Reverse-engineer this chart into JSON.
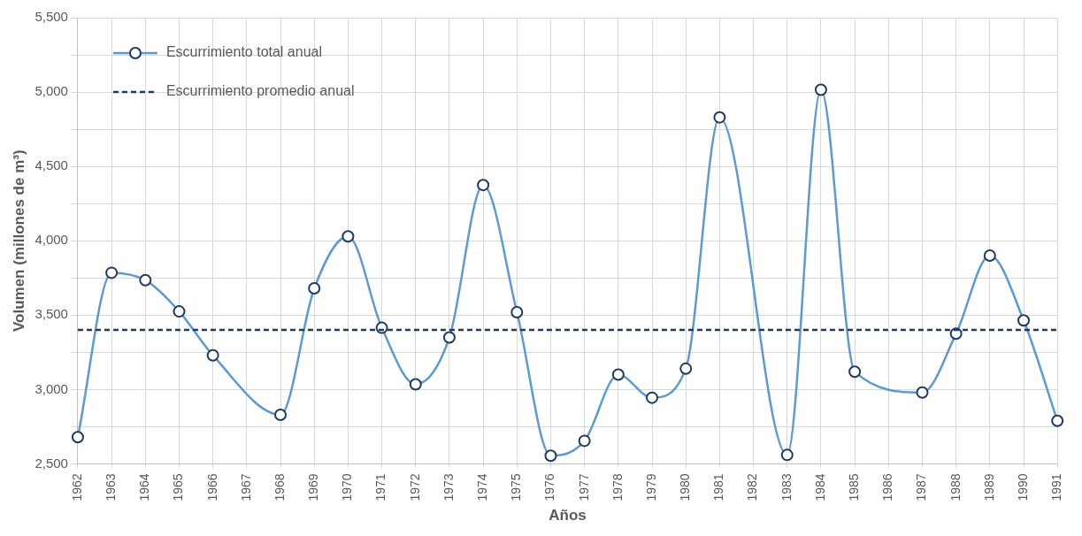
{
  "chart_data": {
    "type": "line",
    "xlabel": "Años",
    "ylabel": "Volumen (millones de m³)",
    "categories": [
      "1962",
      "1963",
      "1964",
      "1965",
      "1966",
      "1967",
      "1968",
      "1969",
      "1970",
      "1971",
      "1972",
      "1973",
      "1974",
      "1975",
      "1976",
      "1977",
      "1978",
      "1979",
      "1980",
      "1981",
      "1982",
      "1983",
      "1984",
      "1985",
      "1986",
      "1987",
      "1988",
      "1989",
      "1990",
      "1991"
    ],
    "series": [
      {
        "name": "Escurrimiento total anual",
        "color": "#5b9bd5",
        "values": [
          2680,
          3785,
          3735,
          3525,
          3230,
          null,
          2830,
          3680,
          4030,
          3415,
          3035,
          3350,
          4375,
          3520,
          2555,
          2655,
          3100,
          2945,
          3140,
          4830,
          null,
          2560,
          5015,
          3120,
          null,
          2980,
          3375,
          3900,
          3465,
          2790
        ]
      }
    ],
    "ref_lines": [
      {
        "axis": "y",
        "value": 3400,
        "label": "Escurrimiento promedio anual",
        "color": "#1f3864",
        "line_style": "dashed"
      }
    ],
    "ylim": [
      2500,
      5500
    ],
    "yticks": [
      {
        "value": 2500,
        "label": "2,500"
      },
      {
        "value": 2750,
        "label": null
      },
      {
        "value": 3000,
        "label": "3,000"
      },
      {
        "value": 3250,
        "label": null
      },
      {
        "value": 3500,
        "label": "3,500"
      },
      {
        "value": 3750,
        "label": null
      },
      {
        "value": 4000,
        "label": "4,000"
      },
      {
        "value": 4250,
        "label": null
      },
      {
        "value": 4500,
        "label": "4,500"
      },
      {
        "value": 4750,
        "label": null
      },
      {
        "value": 5000,
        "label": "5,000"
      },
      {
        "value": 5250,
        "label": null
      },
      {
        "value": 5500,
        "label": "5,500"
      }
    ],
    "grid": true,
    "legend": "top left",
    "marker": "circle",
    "line_style": "solid"
  }
}
